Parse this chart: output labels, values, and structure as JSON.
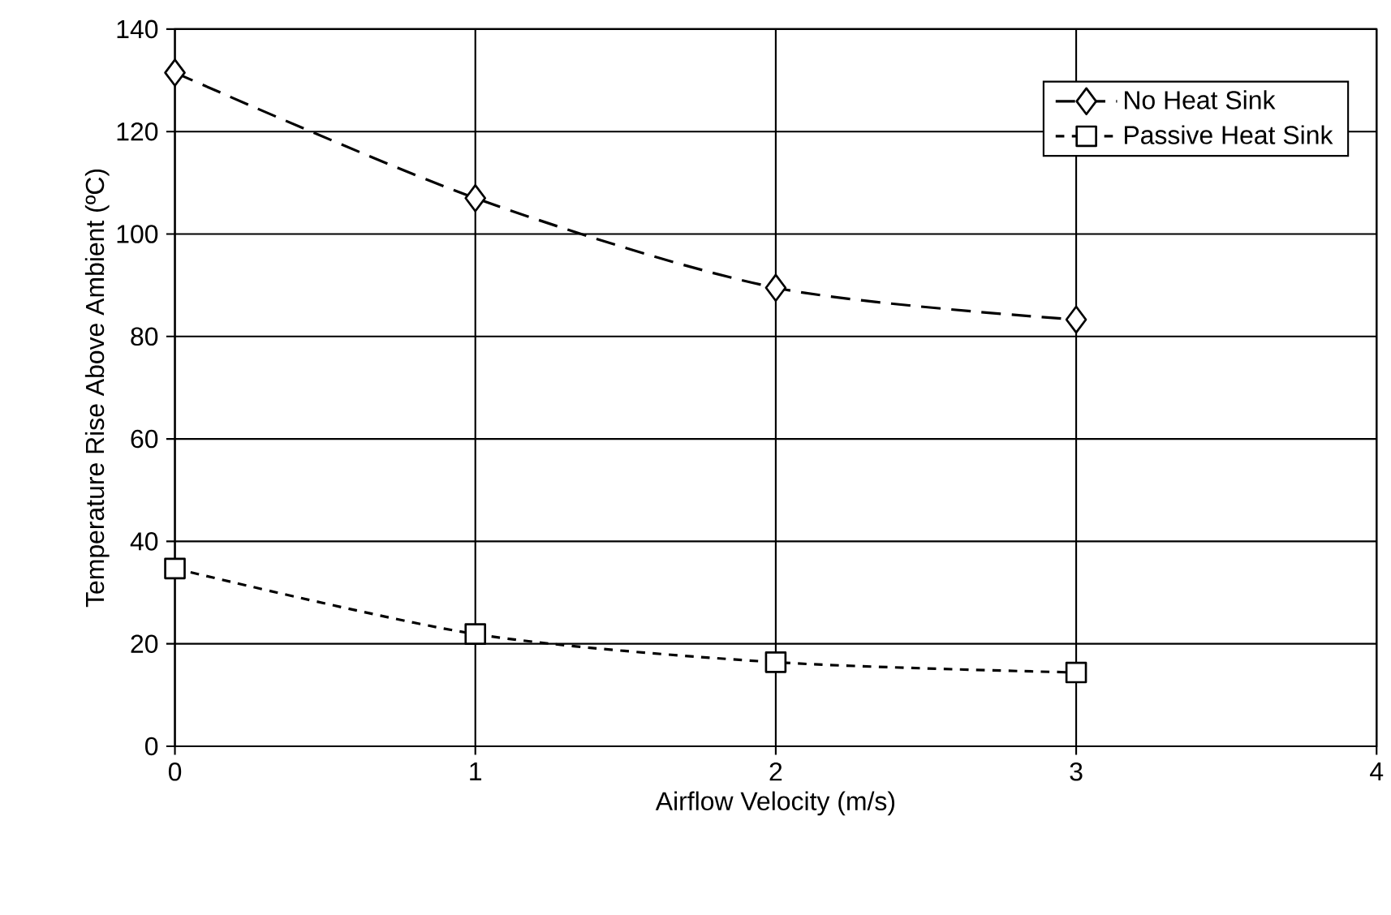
{
  "chart_data": {
    "type": "line",
    "xlabel": "Airflow Velocity (m/s)",
    "ylabel": "Temperature Rise Above Ambient (ºC)",
    "x": [
      0,
      1,
      2,
      3
    ],
    "series": [
      {
        "name": "No Heat Sink",
        "color": "#000000",
        "values": [
          131.5,
          107,
          89.5,
          83.3
        ],
        "marker": "diamond",
        "line_style": "dashed"
      },
      {
        "name": "Passive Heat Sink",
        "color": "#000000",
        "values": [
          34.7,
          21.9,
          16.4,
          14.4
        ],
        "marker": "square",
        "line_style": "dotted"
      }
    ],
    "xlim": [
      0,
      4
    ],
    "xticks": [
      0,
      1,
      2,
      3,
      4
    ],
    "ylim": [
      0,
      140
    ],
    "yticks": [
      0,
      20,
      40,
      60,
      80,
      100,
      120,
      140
    ],
    "grid": true,
    "legend": "top right"
  }
}
